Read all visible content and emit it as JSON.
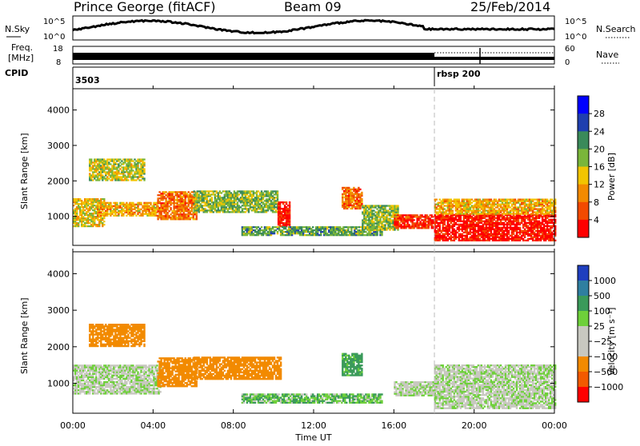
{
  "header": {
    "station": "Prince George (fitACF)",
    "beam": "Beam 09",
    "date": "25/Feb/2014"
  },
  "strip": {
    "nsky_label": "N.Sky",
    "nsky_ticks": [
      "10^5",
      "10^0"
    ],
    "nsearch_label": "N.Search",
    "freq_label_1": "Freq.",
    "freq_label_2": "[MHz]",
    "freq_ticks": [
      "18",
      "8"
    ],
    "nave_label": "Nave",
    "nave_ticks": [
      "60",
      "0"
    ],
    "cpid_label": "CPID",
    "cpid_values": [
      "3503",
      "rbsp 200"
    ]
  },
  "chart_data": [
    {
      "type": "heatmap",
      "panel": "power",
      "ylabel": "Slant Range [km]",
      "ylim": [
        180,
        4600
      ],
      "yticks": [
        1000,
        2000,
        3000,
        4000
      ],
      "xlim": [
        0,
        24
      ],
      "colorbar_label": "Power [dB]",
      "colorbar_ticks": [
        "4",
        "8",
        "12",
        "16",
        "20",
        "24",
        "28"
      ],
      "colorbar_colors": [
        "#0000ff",
        "#1f3faf",
        "#3a8a5a",
        "#7ab63a",
        "#f2c400",
        "#f28a00",
        "#f24a00",
        "#ff0000"
      ],
      "regions": [
        {
          "t": [
            0.0,
            1.6
          ],
          "r": [
            700,
            1500
          ],
          "level": 16
        },
        {
          "t": [
            0.8,
            3.6
          ],
          "r": [
            2000,
            2600
          ],
          "level": 14
        },
        {
          "t": [
            1.2,
            4.2
          ],
          "r": [
            1000,
            1400
          ],
          "level": 18
        },
        {
          "t": [
            4.2,
            6.2
          ],
          "r": [
            900,
            1700
          ],
          "level": 22
        },
        {
          "t": [
            6.0,
            10.2
          ],
          "r": [
            1100,
            1700
          ],
          "level": 12
        },
        {
          "t": [
            10.2,
            10.8
          ],
          "r": [
            700,
            1400
          ],
          "level": 28
        },
        {
          "t": [
            8.4,
            15.4
          ],
          "r": [
            450,
            700
          ],
          "level": 10
        },
        {
          "t": [
            13.4,
            14.4
          ],
          "r": [
            1200,
            1800
          ],
          "level": 22
        },
        {
          "t": [
            14.4,
            16.2
          ],
          "r": [
            600,
            1300
          ],
          "level": 12
        },
        {
          "t": [
            16.0,
            18.0
          ],
          "r": [
            650,
            1050
          ],
          "level": 26
        },
        {
          "t": [
            18.0,
            24.0
          ],
          "r": [
            300,
            1050
          ],
          "level": 28
        },
        {
          "t": [
            18.0,
            24.0
          ],
          "r": [
            1050,
            1500
          ],
          "level": 18
        }
      ]
    },
    {
      "type": "heatmap",
      "panel": "velocity",
      "ylabel": "Slant Range [km]",
      "ylim": [
        180,
        4600
      ],
      "yticks": [
        1000,
        2000,
        3000,
        4000
      ],
      "xlim": [
        0,
        24
      ],
      "xticks": [
        "00:00",
        "04:00",
        "08:00",
        "12:00",
        "16:00",
        "20:00",
        "00:00"
      ],
      "xlabel": "Time UT",
      "colorbar_label": "Velocity [m s⁻¹]",
      "colorbar_ticks": [
        "1000",
        "500",
        "100",
        "25",
        "−25",
        "−100",
        "−500",
        "−1000"
      ],
      "colorbar_colors": [
        "#1f3fbf",
        "#2f7fa0",
        "#3a9a5a",
        "#6ed03a",
        "#c8c8c0",
        "#c8c8c0",
        "#f28a00",
        "#f25a00",
        "#ff0000"
      ],
      "regions": [
        {
          "t": [
            0.0,
            4.4
          ],
          "r": [
            700,
            1500
          ],
          "v": 0
        },
        {
          "t": [
            0.8,
            3.6
          ],
          "r": [
            2000,
            2600
          ],
          "v": -300
        },
        {
          "t": [
            4.2,
            6.2
          ],
          "r": [
            900,
            1700
          ],
          "v": -400
        },
        {
          "t": [
            6.0,
            10.4
          ],
          "r": [
            1100,
            1700
          ],
          "v": -200
        },
        {
          "t": [
            8.4,
            15.4
          ],
          "r": [
            450,
            700
          ],
          "v": 80
        },
        {
          "t": [
            13.4,
            14.4
          ],
          "r": [
            1200,
            1800
          ],
          "v": 150
        },
        {
          "t": [
            16.0,
            18.0
          ],
          "r": [
            650,
            1050
          ],
          "v": 0
        },
        {
          "t": [
            18.0,
            24.0
          ],
          "r": [
            300,
            1500
          ],
          "v": 0
        }
      ]
    }
  ]
}
